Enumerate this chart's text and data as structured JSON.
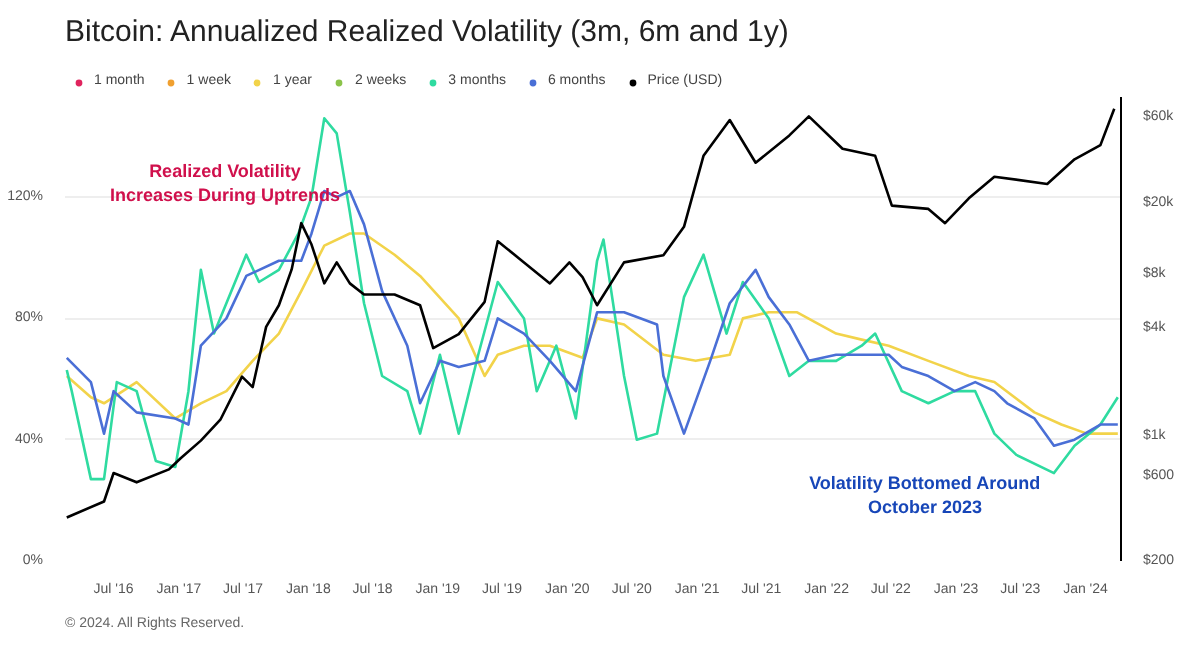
{
  "chart_data": {
    "type": "line",
    "title": "Bitcoin: Annualized Realized Volatility (3m, 6m and 1y)",
    "xlim": [
      "2016-02-15",
      "2024-04-10"
    ],
    "xticks": [
      {
        "value": "2016-07-01",
        "label": "Jul '16"
      },
      {
        "value": "2017-01-01",
        "label": "Jan '17"
      },
      {
        "value": "2017-07-01",
        "label": "Jul '17"
      },
      {
        "value": "2018-01-01",
        "label": "Jan '18"
      },
      {
        "value": "2018-07-01",
        "label": "Jul '18"
      },
      {
        "value": "2019-01-01",
        "label": "Jan '19"
      },
      {
        "value": "2019-07-01",
        "label": "Jul '19"
      },
      {
        "value": "2020-01-01",
        "label": "Jan '20"
      },
      {
        "value": "2020-07-01",
        "label": "Jul '20"
      },
      {
        "value": "2021-01-01",
        "label": "Jan '21"
      },
      {
        "value": "2021-07-01",
        "label": "Jul '21"
      },
      {
        "value": "2022-01-01",
        "label": "Jan '22"
      },
      {
        "value": "2022-07-01",
        "label": "Jul '22"
      },
      {
        "value": "2023-01-01",
        "label": "Jan '23"
      },
      {
        "value": "2023-07-01",
        "label": "Jul '23"
      },
      {
        "value": "2024-01-01",
        "label": "Jan '24"
      }
    ],
    "ylim": [
      0,
      153
    ],
    "yticks": [
      {
        "value": 0,
        "label": "0%"
      },
      {
        "value": 40,
        "label": "40%"
      },
      {
        "value": 80,
        "label": "80%"
      },
      {
        "value": 120,
        "label": "120%"
      }
    ],
    "y2lim": [
      200,
      78000
    ],
    "y2ticks": [
      {
        "value": 200,
        "label": "$200"
      },
      {
        "value": 600,
        "label": "$600"
      },
      {
        "value": 1000,
        "label": "$1k"
      },
      {
        "value": 4000,
        "label": "$4k"
      },
      {
        "value": 8000,
        "label": "$8k"
      },
      {
        "value": 20000,
        "label": "$20k"
      },
      {
        "value": 60000,
        "label": "$60k"
      }
    ],
    "log": "y2",
    "grid": "y",
    "legend": "top",
    "series": [
      {
        "name": "1 month",
        "color": "#e0245e"
      },
      {
        "name": "1 week",
        "color": "#f0a030"
      },
      {
        "name": "1 year",
        "color": "#f2d34a",
        "x": [
          "2016-02-20",
          "2016-04-28",
          "2016-06-04",
          "2016-09-04",
          "2016-12-22",
          "2017-03-04",
          "2017-05-15",
          "2017-07-28",
          "2017-10-10",
          "2017-12-12",
          "2018-02-15",
          "2018-04-28",
          "2018-06-07",
          "2018-09-01",
          "2018-11-12",
          "2019-03-01",
          "2019-05-13",
          "2019-06-19",
          "2019-09-01",
          "2019-11-13",
          "2020-02-13",
          "2020-03-25",
          "2020-06-09",
          "2020-09-28",
          "2020-12-28",
          "2021-04-03",
          "2021-05-10",
          "2021-07-22",
          "2021-10-10",
          "2022-01-28",
          "2022-04-10",
          "2022-06-25",
          "2022-10-15",
          "2023-02-06",
          "2023-04-19",
          "2023-08-10",
          "2023-10-25",
          "2024-01-05",
          "2024-04-01"
        ],
        "values": [
          61,
          54,
          52,
          59,
          47,
          52,
          56,
          66,
          75,
          89,
          104,
          108,
          108,
          101,
          94,
          80,
          61,
          68,
          71,
          71,
          67,
          80,
          78,
          68,
          66,
          68,
          80,
          82,
          82,
          75,
          73,
          71,
          66,
          61,
          59,
          49,
          45,
          42,
          42
        ]
      },
      {
        "name": "2 weeks",
        "color": "#8bc34a"
      },
      {
        "name": "3 months",
        "color": "#2fdba0",
        "x": [
          "2016-02-20",
          "2016-03-05",
          "2016-04-28",
          "2016-06-04",
          "2016-07-10",
          "2016-09-04",
          "2016-10-28",
          "2016-12-22",
          "2017-01-28",
          "2017-03-04",
          "2017-04-10",
          "2017-05-15",
          "2017-07-10",
          "2017-08-15",
          "2017-10-10",
          "2017-12-04",
          "2018-01-10",
          "2018-02-15",
          "2018-03-22",
          "2018-04-28",
          "2018-06-07",
          "2018-07-28",
          "2018-10-07",
          "2018-11-12",
          "2019-01-07",
          "2019-03-01",
          "2019-04-25",
          "2019-06-19",
          "2019-09-01",
          "2019-10-07",
          "2019-12-01",
          "2020-01-25",
          "2020-03-25",
          "2020-04-12",
          "2020-06-09",
          "2020-07-15",
          "2020-09-10",
          "2020-11-25",
          "2021-01-19",
          "2021-03-25",
          "2021-05-10",
          "2021-07-22",
          "2021-09-18",
          "2021-11-12",
          "2022-01-28",
          "2022-04-10",
          "2022-05-18",
          "2022-08-01",
          "2022-10-15",
          "2022-12-28",
          "2023-02-24",
          "2023-04-19",
          "2023-06-20",
          "2023-10-04",
          "2023-12-01",
          "2024-02-12",
          "2024-04-01"
        ],
        "values": [
          63,
          56,
          27,
          27,
          59,
          56,
          33,
          31,
          56,
          96,
          75,
          85,
          101,
          92,
          96,
          108,
          120,
          146,
          141,
          115,
          85,
          61,
          56,
          42,
          68,
          42,
          68,
          92,
          80,
          56,
          71,
          47,
          99,
          106,
          61,
          40,
          42,
          87,
          101,
          75,
          92,
          80,
          61,
          66,
          66,
          71,
          75,
          56,
          52,
          56,
          56,
          42,
          35,
          29,
          38,
          45,
          54
        ]
      },
      {
        "name": "6 months",
        "color": "#4a6fd6",
        "x": [
          "2016-02-20",
          "2016-04-28",
          "2016-06-04",
          "2016-07-01",
          "2016-09-04",
          "2016-12-22",
          "2017-01-28",
          "2017-03-04",
          "2017-05-15",
          "2017-07-10",
          "2017-10-10",
          "2017-12-12",
          "2018-01-10",
          "2018-02-15",
          "2018-03-22",
          "2018-04-28",
          "2018-06-07",
          "2018-07-28",
          "2018-10-07",
          "2018-11-12",
          "2019-01-07",
          "2019-03-01",
          "2019-05-13",
          "2019-06-19",
          "2019-09-01",
          "2019-11-13",
          "2020-01-25",
          "2020-03-25",
          "2020-06-09",
          "2020-09-10",
          "2020-09-28",
          "2020-11-25",
          "2021-02-07",
          "2021-04-03",
          "2021-06-15",
          "2021-07-22",
          "2021-09-18",
          "2021-11-12",
          "2022-01-28",
          "2022-04-10",
          "2022-06-25",
          "2022-08-01",
          "2022-10-15",
          "2022-12-28",
          "2023-02-24",
          "2023-04-19",
          "2023-05-25",
          "2023-08-10",
          "2023-10-04",
          "2023-12-01",
          "2024-02-12",
          "2024-04-01"
        ],
        "values": [
          67,
          59,
          42,
          56,
          49,
          47,
          45,
          71,
          80,
          94,
          99,
          99,
          108,
          122,
          120,
          122,
          111,
          89,
          71,
          52,
          66,
          64,
          66,
          80,
          75,
          66,
          56,
          82,
          82,
          78,
          61,
          42,
          66,
          85,
          96,
          87,
          78,
          66,
          68,
          68,
          68,
          64,
          61,
          56,
          59,
          56,
          52,
          47,
          38,
          40,
          45,
          45
        ]
      },
      {
        "name": "Price (USD)",
        "color": "#000000",
        "axis": "y2",
        "x": [
          "2016-02-20",
          "2016-06-04",
          "2016-07-01",
          "2016-09-04",
          "2016-12-04",
          "2017-01-06",
          "2017-03-04",
          "2017-04-28",
          "2017-06-28",
          "2017-07-28",
          "2017-09-04",
          "2017-10-10",
          "2017-11-15",
          "2017-12-12",
          "2018-01-10",
          "2018-02-15",
          "2018-03-22",
          "2018-04-28",
          "2018-06-07",
          "2018-09-01",
          "2018-11-12",
          "2018-12-19",
          "2019-03-01",
          "2019-05-13",
          "2019-06-19",
          "2019-09-01",
          "2019-11-13",
          "2020-01-07",
          "2020-02-13",
          "2020-03-25",
          "2020-06-09",
          "2020-09-28",
          "2020-11-25",
          "2021-01-19",
          "2021-04-03",
          "2021-06-15",
          "2021-09-18",
          "2021-11-12",
          "2022-02-15",
          "2022-05-18",
          "2022-07-04",
          "2022-10-15",
          "2022-12-01",
          "2023-02-06",
          "2023-04-19",
          "2023-09-15",
          "2023-12-01",
          "2024-02-12",
          "2024-03-22"
        ],
        "values": [
          350,
          430,
          620,
          550,
          650,
          750,
          940,
          1230,
          2140,
          1870,
          4060,
          5360,
          8500,
          15400,
          11700,
          7100,
          9300,
          7100,
          6150,
          6150,
          5360,
          3090,
          3700,
          5600,
          12200,
          9300,
          7100,
          9300,
          7700,
          5360,
          9300,
          10200,
          14700,
          36600,
          58000,
          33500,
          47600,
          60800,
          40100,
          36600,
          19300,
          18500,
          15400,
          21200,
          28000,
          25500,
          35000,
          42000,
          67000
        ]
      }
    ],
    "annotations": [
      "Realized Volatility\nIncreases During Uptrends",
      "Volatility Bottomed Around\nOctober 2023",
      "© 2024. All Rights Reserved."
    ]
  }
}
